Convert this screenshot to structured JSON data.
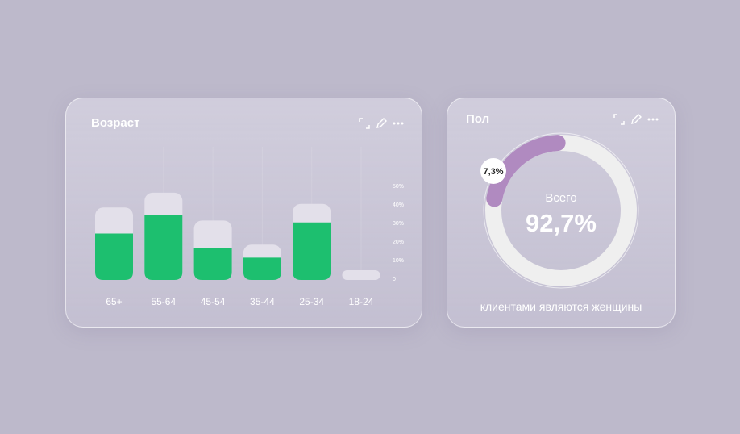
{
  "age_card": {
    "title": "Возраст",
    "icons": [
      "expand-icon",
      "pencil-icon",
      "more-icon"
    ]
  },
  "gender_card": {
    "title": "Пол",
    "icons": [
      "expand-icon",
      "pencil-icon",
      "more-icon"
    ],
    "center_label": "Всего",
    "center_value": "92,7%",
    "badge": "7,3%",
    "caption": "клиентами являются женщины"
  },
  "chart_data": [
    {
      "type": "bar",
      "title": "Возраст",
      "categories": [
        "65+",
        "55-64",
        "45-54",
        "35-44",
        "25-34",
        "18-24"
      ],
      "series": [
        {
          "values": [
            25,
            35,
            17,
            12,
            31,
            0
          ],
          "color": "#1dbf6f"
        },
        {
          "values": [
            39,
            47,
            32,
            19,
            41,
            5
          ],
          "color": "#e3e0ea"
        }
      ],
      "yticks": [
        "50%",
        "40%",
        "30%",
        "20%",
        "10%",
        "0"
      ],
      "ylim": [
        0,
        50
      ]
    },
    {
      "type": "pie",
      "title": "Пол",
      "slices": [
        {
          "label": "7,3%",
          "value": 7.3,
          "color": "#b08ac0"
        },
        {
          "label": "92,7%",
          "value": 92.7,
          "color": "#efefef"
        }
      ]
    }
  ]
}
